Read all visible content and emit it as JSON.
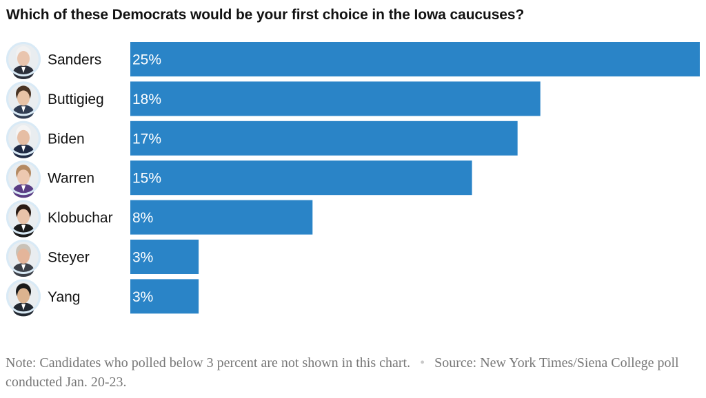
{
  "chart_data": {
    "type": "bar",
    "orientation": "horizontal",
    "title": "Which of these Democrats would be your first choice in the Iowa caucuses?",
    "categories": [
      "Sanders",
      "Buttigieg",
      "Biden",
      "Warren",
      "Klobuchar",
      "Steyer",
      "Yang"
    ],
    "values": [
      25,
      18,
      17,
      15,
      8,
      3,
      3
    ],
    "value_labels": [
      "25%",
      "18%",
      "17%",
      "15%",
      "8%",
      "3%",
      "3%"
    ],
    "unit": "percent",
    "xlim": [
      0,
      25
    ],
    "bar_color": "#2a84c7",
    "grid": false,
    "legend": "none"
  },
  "avatars": [
    {
      "name": "Sanders",
      "icon": "sanders-portrait-icon",
      "skin": "#e9c5ae",
      "hair": "#f1f1f1",
      "clothing": "#2b2f3a"
    },
    {
      "name": "Buttigieg",
      "icon": "buttigieg-portrait-icon",
      "skin": "#e8c3a6",
      "hair": "#4a3424",
      "clothing": "#2f3c52"
    },
    {
      "name": "Biden",
      "icon": "biden-portrait-icon",
      "skin": "#e6bea4",
      "hair": "#f4f4f4",
      "clothing": "#1f2a44"
    },
    {
      "name": "Warren",
      "icon": "warren-portrait-icon",
      "skin": "#edc8b0",
      "hair": "#b48a63",
      "clothing": "#5a3d84"
    },
    {
      "name": "Klobuchar",
      "icon": "klobuchar-portrait-icon",
      "skin": "#e9c3a9",
      "hair": "#2a1b14",
      "clothing": "#1b1b1b"
    },
    {
      "name": "Steyer",
      "icon": "steyer-portrait-icon",
      "skin": "#e4b59a",
      "hair": "#c9c2b8",
      "clothing": "#3c4048"
    },
    {
      "name": "Yang",
      "icon": "yang-portrait-icon",
      "skin": "#dcb38f",
      "hair": "#1a1a1a",
      "clothing": "#222831"
    }
  ],
  "avatar_ring_color": "#d9eaf6",
  "footnote": {
    "note": "Note: Candidates who polled below 3 percent are not shown in this chart.",
    "separator": "•",
    "source": "Source: New York Times/Siena College poll conducted Jan. 20-23."
  }
}
